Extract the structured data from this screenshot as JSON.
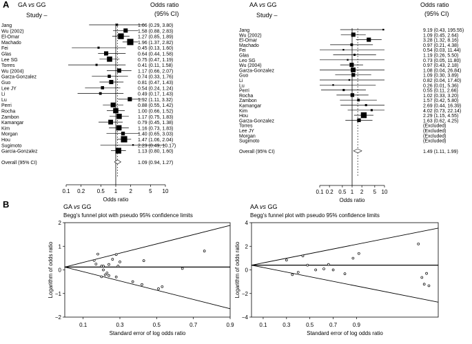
{
  "panels": {
    "A": "A",
    "B": "B"
  },
  "chart_data": [
    {
      "type": "forest",
      "title": "GA vs GG",
      "study_header": "Study –",
      "or_header_1": "Odds ratio",
      "or_header_2": "(95% CI)",
      "xlabel": "Odds ratio",
      "xscale": "log",
      "xlim": [
        0.1,
        10
      ],
      "xticks": [
        "0.1",
        "0.2",
        "0.5",
        "1",
        "2",
        "5",
        "10"
      ],
      "studies": [
        {
          "name": "Jang",
          "or": 1.06,
          "lo": 0.29,
          "hi": 3.8,
          "text": "1.06 (0.29, 3.80)",
          "weight": 2
        },
        {
          "name": "Wu (2002)",
          "or": 1.58,
          "lo": 0.88,
          "hi": 2.83,
          "text": "1.58 (0.88, 2.83)",
          "weight": 6
        },
        {
          "name": "El-Omar",
          "or": 1.27,
          "lo": 0.85,
          "hi": 1.89,
          "text": "1.27 (0.85, 1.89)",
          "weight": 9
        },
        {
          "name": "Machado",
          "or": 1.96,
          "lo": 1.37,
          "hi": 2.82,
          "text": "1.96 (1.37, 2.82)",
          "weight": 10
        },
        {
          "name": "Fei",
          "or": 0.45,
          "lo": 0.13,
          "hi": 1.6,
          "text": "0.45 (0.13, 1.60)",
          "weight": 2
        },
        {
          "name": "Glas",
          "or": 0.64,
          "lo": 0.44,
          "hi": 1.58,
          "text": "0.64 (0.44, 1.58)",
          "weight": 6
        },
        {
          "name": "Lee SG",
          "or": 0.75,
          "lo": 0.47,
          "hi": 1.19,
          "text": "0.75 (0.47, 1.19)",
          "weight": 8
        },
        {
          "name": "Torres",
          "or": 0.41,
          "lo": 0.11,
          "hi": 1.58,
          "text": "0.41 (0.11, 1.58)",
          "weight": 2
        },
        {
          "name": "Wu (2004)",
          "or": 1.17,
          "lo": 0.66,
          "hi": 2.07,
          "text": "1.17 (0.66, 2.07)",
          "weight": 6
        },
        {
          "name": "Garza-Gonzalez",
          "or": 0.74,
          "lo": 0.33,
          "hi": 1.76,
          "text": "0.74 (0.33, 1.76)",
          "weight": 4
        },
        {
          "name": "Guo",
          "or": 0.81,
          "lo": 0.47,
          "hi": 1.43,
          "text": "0.81 (0.47, 1.43)",
          "weight": 6
        },
        {
          "name": "Lee JY",
          "or": 0.54,
          "lo": 0.24,
          "hi": 1.24,
          "text": "0.54 (0.24, 1.24)",
          "weight": 4
        },
        {
          "name": "Li",
          "or": 0.49,
          "lo": 0.17,
          "hi": 1.43,
          "text": "0.49 (0.17, 1.43)",
          "weight": 3
        },
        {
          "name": "Lu",
          "or": 1.92,
          "lo": 1.11,
          "hi": 3.32,
          "text": "1.92 (1.11, 3.32)",
          "weight": 6
        },
        {
          "name": "Perri",
          "or": 0.88,
          "lo": 0.55,
          "hi": 1.42,
          "text": "0.88 (0.55, 1.42)",
          "weight": 7
        },
        {
          "name": "Rocha",
          "or": 1.0,
          "lo": 0.66,
          "hi": 1.52,
          "text": "1.00 (0.66, 1.52)",
          "weight": 8
        },
        {
          "name": "Zambon",
          "or": 1.17,
          "lo": 0.75,
          "hi": 1.83,
          "text": "1.17 (0.75, 1.83)",
          "weight": 8
        },
        {
          "name": "Kamangar",
          "or": 0.79,
          "lo": 0.45,
          "hi": 1.38,
          "text": "0.79 (0.45, 1.38)",
          "weight": 7
        },
        {
          "name": "Kim",
          "or": 1.16,
          "lo": 0.73,
          "hi": 1.83,
          "text": "1.16 (0.73, 1.83)",
          "weight": 8
        },
        {
          "name": "Morgan",
          "or": 1.4,
          "lo": 0.65,
          "hi": 3.03,
          "text": "1.40 (0.65, 3.03)",
          "weight": 5
        },
        {
          "name": "Hou",
          "or": 1.47,
          "lo": 1.06,
          "hi": 2.04,
          "text": "1.47 (1.06, 2.04)",
          "weight": 10
        },
        {
          "name": "Sugimoto",
          "or": 2.23,
          "lo": 0.49,
          "hi": 10.17,
          "text": "2.23 (0.49, 10.17)",
          "weight": 1
        },
        {
          "name": "Garcia-Gonzalez",
          "or": 1.13,
          "lo": 0.8,
          "hi": 1.6,
          "text": "1.13 (0.80, 1.60)",
          "weight": 9
        }
      ],
      "overall": {
        "name": "Overall (95% CI)",
        "or": 1.09,
        "lo": 0.94,
        "hi": 1.27,
        "text": "1.09 (0.94, 1.27)"
      }
    },
    {
      "type": "forest",
      "title": "AA vs GG",
      "study_header": "Study –",
      "or_header_1": "Odds ratio",
      "or_header_2": "(95% CI)",
      "xlabel": "Odds ratio",
      "xscale": "log",
      "xlim": [
        0.1,
        10
      ],
      "xticks": [
        "0.1",
        "0.2",
        "0.5",
        "1",
        "2",
        "5",
        "10"
      ],
      "studies": [
        {
          "name": "Jang",
          "or": 9.19,
          "lo": 0.43,
          "hi": 195.55,
          "text": "9.19 (0.43, 195.55)",
          "weight": 1
        },
        {
          "name": "Wu (2002)",
          "or": 1.09,
          "lo": 0.45,
          "hi": 2.64,
          "text": "1.09 (0.45, 2.64)",
          "weight": 6
        },
        {
          "name": "El-Omar",
          "or": 3.28,
          "lo": 1.32,
          "hi": 8.16,
          "text": "3.28 (1.32, 8.16)",
          "weight": 6
        },
        {
          "name": "Machado",
          "or": 0.97,
          "lo": 0.21,
          "hi": 4.38,
          "text": "0.97 (0.21, 4.38)",
          "weight": 3
        },
        {
          "name": "Fei",
          "or": 0.54,
          "lo": 0.03,
          "hi": 11.44,
          "text": "0.54 (0.03, 11.44)",
          "weight": 1
        },
        {
          "name": "Glas",
          "or": 1.19,
          "lo": 0.26,
          "hi": 5.5,
          "text": "1.19 (0.26, 5.50)",
          "weight": 2
        },
        {
          "name": "Leo SG",
          "or": 0.73,
          "lo": 0.05,
          "hi": 11.8,
          "text": "0.73 (0.05, 11.80)",
          "weight": 1
        },
        {
          "name": "Wu (2004)",
          "or": 0.97,
          "lo": 0.43,
          "hi": 2.18,
          "text": "0.97 (0.43, 2.18)",
          "weight": 6
        },
        {
          "name": "Garza-Gonzalez",
          "or": 1.08,
          "lo": 0.04,
          "hi": 26.84,
          "text": "1.08 (0.04, 26.84)",
          "weight": 7
        },
        {
          "name": "Guo",
          "or": 1.09,
          "lo": 0.3,
          "hi": 3.89,
          "text": "1.09 (0.30, 3.89)",
          "weight": 5
        },
        {
          "name": "Li",
          "or": 0.82,
          "lo": 0.04,
          "hi": 17.4,
          "text": "0.82 (0.04, 17.40)",
          "weight": 1
        },
        {
          "name": "Lu",
          "or": 0.26,
          "lo": 0.01,
          "hi": 5.36,
          "text": "0.26 (0.01, 5.36)",
          "weight": 1
        },
        {
          "name": "Perri",
          "or": 0.55,
          "lo": 0.11,
          "hi": 2.66,
          "text": "0.55 (0.11, 2.66)",
          "weight": 2
        },
        {
          "name": "Rocha",
          "or": 1.02,
          "lo": 0.33,
          "hi": 3.2,
          "text": "1.02 (0.33, 3.20)",
          "weight": 5
        },
        {
          "name": "Zambon",
          "or": 1.57,
          "lo": 0.42,
          "hi": 5.8,
          "text": "1.57 (0.42, 5.80)",
          "weight": 3
        },
        {
          "name": "Kamangar",
          "or": 2.69,
          "lo": 0.44,
          "hi": 16.39,
          "text": "2.69 (0.44, 16.39)",
          "weight": 2
        },
        {
          "name": "Kim",
          "or": 4.02,
          "lo": 0.73,
          "hi": 22.14,
          "text": "4.02 (0.73, 22.14)",
          "weight": 2
        },
        {
          "name": "Hou",
          "or": 2.29,
          "lo": 1.15,
          "hi": 4.55,
          "text": "2.29 (1.15, 4.55)",
          "weight": 9
        },
        {
          "name": "Garza-Gonzalez",
          "or": 1.63,
          "lo": 0.62,
          "hi": 4.25,
          "text": "1.63 (0.62, 4.25)",
          "weight": 5
        },
        {
          "name": "Torres",
          "text": "(Excluded)"
        },
        {
          "name": "Lee JY",
          "text": "(Excluded)"
        },
        {
          "name": "Morgan",
          "text": "(Excluded)"
        },
        {
          "name": "Sugimoto",
          "text": "(Excluded)"
        }
      ],
      "overall": {
        "name": "Overall (95% CI)",
        "or": 1.49,
        "lo": 1.11,
        "hi": 1.99,
        "text": "1.49 (1.11, 1.99)"
      }
    },
    {
      "type": "scatter",
      "title": "GA vs GG",
      "subtitle": "Begg's funnel plot with pseudo 95% confidence limits",
      "xlabel": "Standard error of log odds ratio",
      "ylabel": "Logarithm of odds ratio",
      "xlim": [
        0,
        0.9
      ],
      "ylim": [
        -2,
        2
      ],
      "xticks": [
        "0.1",
        "0.3",
        "0.5",
        "0.7",
        "0.9"
      ],
      "yticks": [
        "2",
        "1",
        "0",
        "−1",
        "−2"
      ],
      "pooled": 0.12,
      "points": [
        {
          "x": 0.16,
          "y": 0.4
        },
        {
          "x": 0.17,
          "y": 0.25
        },
        {
          "x": 0.18,
          "y": 0.67
        },
        {
          "x": 0.2,
          "y": 0.16
        },
        {
          "x": 0.2,
          "y": -0.29
        },
        {
          "x": 0.21,
          "y": 0.16
        },
        {
          "x": 0.21,
          "y": 0.0
        },
        {
          "x": 0.22,
          "y": -0.21
        },
        {
          "x": 0.23,
          "y": -0.13
        },
        {
          "x": 0.24,
          "y": -0.24
        },
        {
          "x": 0.24,
          "y": 0.23
        },
        {
          "x": 0.26,
          "y": 0.45
        },
        {
          "x": 0.28,
          "y": 0.65
        },
        {
          "x": 0.28,
          "y": -0.3
        },
        {
          "x": 0.29,
          "y": 0.16
        },
        {
          "x": 0.3,
          "y": 0.34
        },
        {
          "x": 0.37,
          "y": -0.5
        },
        {
          "x": 0.42,
          "y": -0.62
        },
        {
          "x": 0.43,
          "y": 0.39
        },
        {
          "x": 0.51,
          "y": -0.8
        },
        {
          "x": 0.53,
          "y": -0.71
        },
        {
          "x": 0.64,
          "y": 0.06
        },
        {
          "x": 0.76,
          "y": 0.8
        }
      ]
    },
    {
      "type": "scatter",
      "title": "AA vs GG",
      "subtitle": "Begg's funnel plot with pseudo 95% confidence limits",
      "xlabel": "Standard error of log odds ratio",
      "ylabel": "Logarithm of odds ratio",
      "xlim": [
        0,
        1.6
      ],
      "ylim": [
        -4,
        4
      ],
      "xticks": [
        "0.1",
        "0.3",
        "0.5",
        "0.7",
        "0.9"
      ],
      "yticks": [
        "4",
        "2",
        "0",
        "−2",
        "−4"
      ],
      "pooled": 0.4,
      "points": [
        {
          "x": 0.3,
          "y": 0.83
        },
        {
          "x": 0.35,
          "y": -0.4
        },
        {
          "x": 0.4,
          "y": -0.2
        },
        {
          "x": 0.44,
          "y": 1.18
        },
        {
          "x": 0.48,
          "y": 0.4
        },
        {
          "x": 0.55,
          "y": 0.0
        },
        {
          "x": 0.62,
          "y": 0.09
        },
        {
          "x": 0.66,
          "y": 0.46
        },
        {
          "x": 0.7,
          "y": 0.0
        },
        {
          "x": 0.8,
          "y": -0.33
        },
        {
          "x": 0.87,
          "y": 0.99
        },
        {
          "x": 0.92,
          "y": 1.39
        },
        {
          "x": 1.43,
          "y": 2.2
        },
        {
          "x": 1.46,
          "y": -0.64
        },
        {
          "x": 1.48,
          "y": -1.21
        },
        {
          "x": 1.52,
          "y": -1.34
        },
        {
          "x": 1.5,
          "y": -0.3
        }
      ]
    }
  ]
}
